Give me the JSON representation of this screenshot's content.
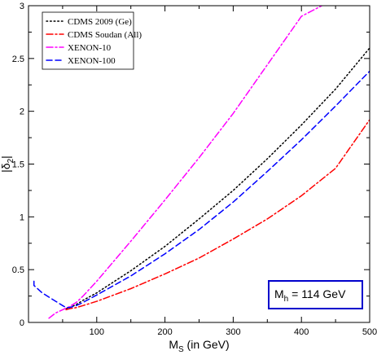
{
  "chart_data": {
    "type": "line",
    "xlabel": "M",
    "xlabel_sub": "S",
    "xlabel_suffix": " (in GeV)",
    "ylabel_left": "|δ",
    "ylabel_sub": "2",
    "ylabel_right": "|",
    "xlim": [
      0,
      500
    ],
    "ylim": [
      0,
      3
    ],
    "x_ticks": [
      100,
      200,
      300,
      400,
      500
    ],
    "y_ticks": [
      0,
      0.5,
      1,
      1.5,
      2,
      2.5,
      3
    ],
    "x_tick_labels": [
      "100",
      "200",
      "300",
      "400",
      "500"
    ],
    "y_tick_labels": [
      "0",
      "0.5",
      "1",
      "1.5",
      "2",
      "2.5",
      "3"
    ],
    "grid": false,
    "legend_position": "top-left",
    "annotation": {
      "text_main": "M",
      "text_sub": "h",
      "text_rest": " = 114 GeV",
      "color": "#0000cc"
    },
    "series": [
      {
        "name": "CDMS 2009 (Ge)",
        "color": "#000000",
        "dash": "dot",
        "x": [
          55,
          60,
          70,
          80,
          100,
          150,
          200,
          250,
          300,
          350,
          400,
          450,
          500
        ],
        "y": [
          0.13,
          0.14,
          0.17,
          0.21,
          0.28,
          0.49,
          0.72,
          0.98,
          1.25,
          1.55,
          1.87,
          2.21,
          2.6
        ]
      },
      {
        "name": "CDMS Soudan (All)",
        "color": "#ff0000",
        "dash": "dashdot",
        "x": [
          55,
          60,
          70,
          80,
          100,
          150,
          200,
          250,
          300,
          350,
          400,
          450,
          500
        ],
        "y": [
          0.12,
          0.13,
          0.14,
          0.16,
          0.2,
          0.32,
          0.46,
          0.61,
          0.79,
          0.98,
          1.2,
          1.46,
          1.92
        ]
      },
      {
        "name": "XENON-10",
        "color": "#ff00ff",
        "dash": "dashdot",
        "x": [
          30,
          40,
          50,
          60,
          70,
          80,
          100,
          150,
          200,
          250,
          300,
          350,
          400,
          430
        ],
        "y": [
          0.04,
          0.09,
          0.12,
          0.15,
          0.19,
          0.25,
          0.39,
          0.77,
          1.16,
          1.56,
          1.98,
          2.44,
          2.9,
          3.0
        ]
      },
      {
        "name": "XENON-100",
        "color": "#0000ff",
        "dash": "dash",
        "x": [
          8,
          8,
          20,
          30,
          40,
          50,
          55,
          60,
          70,
          80,
          100,
          150,
          200,
          250,
          300,
          350,
          400,
          450,
          500
        ],
        "y": [
          0.39,
          0.35,
          0.28,
          0.24,
          0.2,
          0.16,
          0.14,
          0.14,
          0.16,
          0.19,
          0.26,
          0.44,
          0.65,
          0.88,
          1.14,
          1.43,
          1.73,
          2.05,
          2.38
        ]
      }
    ]
  }
}
